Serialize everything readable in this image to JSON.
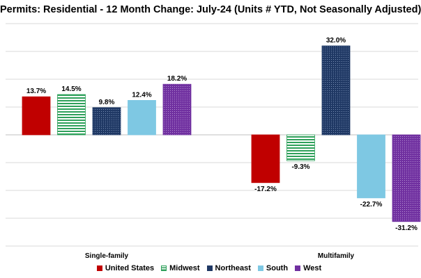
{
  "chart_data": {
    "type": "bar",
    "title": "Permits: Residential - 12 Month Change:  July-24 (Units # YTD, Not Seasonally Adjusted)",
    "xlabel": "",
    "ylabel": "",
    "categories": [
      "Single-family",
      "Multifamily"
    ],
    "series": [
      {
        "name": "United States",
        "values": [
          13.7,
          -17.2
        ],
        "labels": [
          "13.7%",
          "-17.2%"
        ],
        "color": "#c00000",
        "pattern": "solid"
      },
      {
        "name": "Midwest",
        "values": [
          14.5,
          -9.3
        ],
        "labels": [
          "14.5%",
          "-9.3%"
        ],
        "color": "#2ea05a",
        "pattern": "horizontal-stripes"
      },
      {
        "name": "Northeast",
        "values": [
          9.8,
          32.0
        ],
        "labels": [
          "9.8%",
          "32.0%"
        ],
        "color": "#1f3864",
        "pattern": "dots"
      },
      {
        "name": "South",
        "values": [
          12.4,
          -22.7
        ],
        "labels": [
          "12.4%",
          "-22.7%"
        ],
        "color": "#7ec8e3",
        "pattern": "solid"
      },
      {
        "name": "West",
        "values": [
          18.2,
          -31.2
        ],
        "labels": [
          "18.2%",
          "-31.2%"
        ],
        "color": "#7030a0",
        "pattern": "dots"
      }
    ],
    "ylim": [
      -40,
      40
    ],
    "grid": true,
    "legend_position": "bottom"
  }
}
